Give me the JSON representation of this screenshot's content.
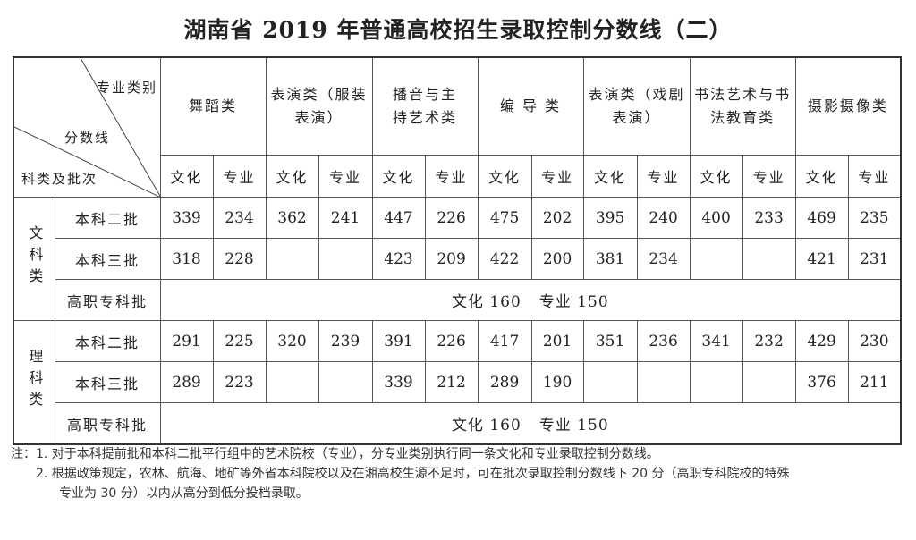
{
  "title": "湖南省 2019 年普通高校招生录取控制分数线（二）",
  "corner": {
    "top": "专业类别",
    "middle": "分数线",
    "bottom": "科类及批次"
  },
  "categories": [
    "舞蹈类",
    "表演类（服装表演）",
    "播音与主持艺术类",
    "编 导 类",
    "表演类（戏剧表演）",
    "书法艺术与书法教育类",
    "摄影摄像类"
  ],
  "category_lines": [
    [
      "舞蹈类"
    ],
    [
      "表演类（服装",
      "表演）"
    ],
    [
      "播音与主",
      "持艺术类"
    ],
    [
      "编 导 类"
    ],
    [
      "表演类（戏剧",
      "表演）"
    ],
    [
      "书法艺术与书",
      "法教育类"
    ],
    [
      "摄影摄像类"
    ]
  ],
  "sub_headers": {
    "culture": "文化",
    "major": "专业"
  },
  "sections": [
    {
      "name": "文科类",
      "rows": [
        {
          "batch": "本科二批",
          "values": [
            "339",
            "234",
            "362",
            "241",
            "447",
            "226",
            "475",
            "202",
            "395",
            "240",
            "400",
            "233",
            "469",
            "235"
          ]
        },
        {
          "batch": "本科三批",
          "values": [
            "318",
            "228",
            "",
            "",
            "423",
            "209",
            "422",
            "200",
            "381",
            "234",
            "",
            "",
            "421",
            "231"
          ]
        }
      ],
      "vocational": {
        "batch": "高职专科批",
        "culture": "文化 160",
        "major": "专业 150"
      }
    },
    {
      "name": "理科类",
      "rows": [
        {
          "batch": "本科二批",
          "values": [
            "291",
            "225",
            "320",
            "239",
            "391",
            "226",
            "417",
            "201",
            "351",
            "236",
            "341",
            "232",
            "429",
            "230"
          ]
        },
        {
          "batch": "本科三批",
          "values": [
            "289",
            "223",
            "",
            "",
            "339",
            "212",
            "289",
            "190",
            "",
            "",
            "",
            "",
            "376",
            "211"
          ]
        }
      ],
      "vocational": {
        "batch": "高职专科批",
        "culture": "文化 160",
        "major": "专业 150"
      }
    }
  ],
  "notes": {
    "label": "注：",
    "items": [
      "1.  对于本科提前批和本科二批平行组中的艺术院校（专业），分专业类别执行同一条文化和专业录取控制分数线。",
      "2.  根据政策规定，农林、航海、地矿等外省本科院校以及在湘高校生源不足时，可在批次录取控制分数线下 20 分（高职专科院校的特殊",
      "专业为 30 分）以内从高分到低分投档录取。"
    ]
  }
}
